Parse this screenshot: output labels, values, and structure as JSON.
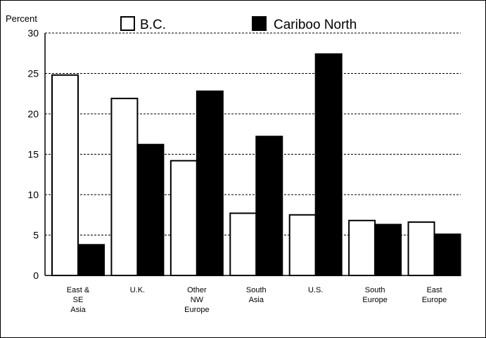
{
  "chart_data": {
    "type": "bar",
    "ylabel": "Percent",
    "ylim": [
      0,
      30
    ],
    "yticks": [
      0,
      5,
      10,
      15,
      20,
      25,
      30
    ],
    "grid": "horizontal dashed",
    "legend_position": "top",
    "categories": [
      [
        "East &",
        "SE",
        "Asia"
      ],
      [
        "U.K."
      ],
      [
        "Other",
        "NW",
        "Europe"
      ],
      [
        "South",
        "Asia"
      ],
      [
        "U.S."
      ],
      [
        "South",
        "Europe"
      ],
      [
        "East",
        "Europe"
      ]
    ],
    "series": [
      {
        "name": "B.C.",
        "color": "#ffffff",
        "values": [
          24.8,
          21.9,
          14.2,
          7.7,
          7.5,
          6.8,
          6.6
        ]
      },
      {
        "name": "Cariboo North",
        "color": "#000000",
        "values": [
          3.8,
          16.2,
          22.8,
          17.2,
          27.4,
          6.3,
          5.1
        ]
      }
    ]
  }
}
